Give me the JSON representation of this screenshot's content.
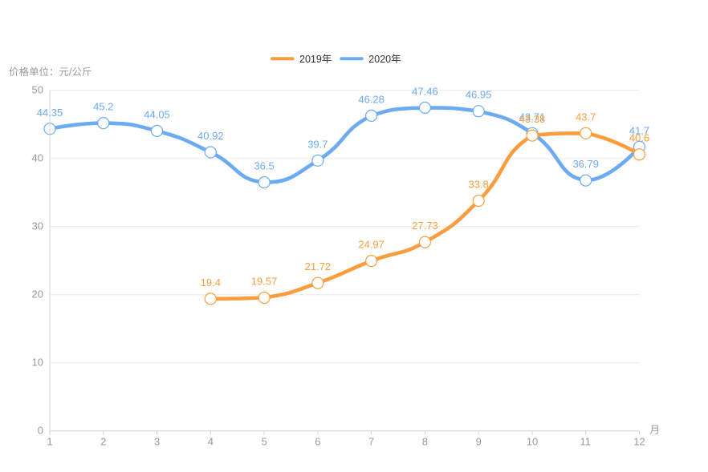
{
  "page": {
    "background": "#ffffff",
    "y_axis_unit_label": "价格单位：元/公斤",
    "x_axis_name": "月"
  },
  "legend": {
    "items": [
      {
        "label": "2019年",
        "color": "#F99D3E"
      },
      {
        "label": "2020年",
        "color": "#6CAAF2"
      }
    ]
  },
  "chart_data": {
    "type": "line",
    "title": "",
    "categories": [
      "1",
      "2",
      "3",
      "4",
      "5",
      "6",
      "7",
      "8",
      "9",
      "10",
      "11",
      "12"
    ],
    "xlabel": "月",
    "ylabel": "价格单位：元/公斤",
    "ylim": [
      0,
      50
    ],
    "y_ticks": [
      0,
      10,
      20,
      30,
      40,
      50
    ],
    "smooth": true,
    "grid": true,
    "legend_position": "top",
    "series": [
      {
        "name": "2019年",
        "color": "#F99D3E",
        "values": [
          null,
          null,
          null,
          19.4,
          19.57,
          21.72,
          24.97,
          27.73,
          33.8,
          43.38,
          43.7,
          40.6
        ]
      },
      {
        "name": "2020年",
        "color": "#6CAAF2",
        "values": [
          44.35,
          45.2,
          44.05,
          40.92,
          36.5,
          39.7,
          46.28,
          47.46,
          46.95,
          43.71,
          36.79,
          41.7
        ]
      }
    ],
    "colors": {
      "grid_line": "#EAEAEA",
      "axis_line": "#D4D4D4",
      "axis_label": "#999999",
      "legend_text": "#333333",
      "marker_fill": "#FFFFFF"
    }
  }
}
